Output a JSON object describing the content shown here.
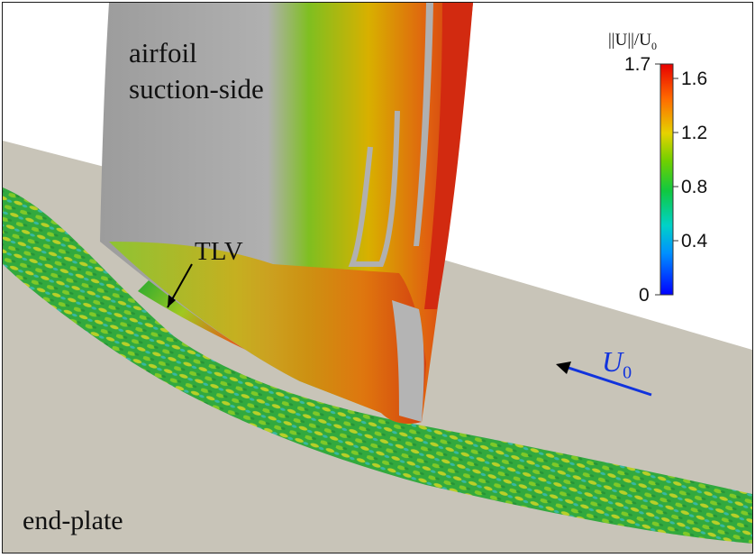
{
  "labels": {
    "airfoil_line1": "airfoil",
    "airfoil_line2": "suction-side",
    "endplate": "end-plate",
    "tlv": "TLV",
    "inflow_symbol": "U",
    "inflow_subscript": "0"
  },
  "colorbar": {
    "title_main": "||U||/U",
    "title_sub": "0",
    "max_label": "1.7",
    "min_label": "0",
    "ticks": [
      {
        "label": "1.6",
        "value": 1.6
      },
      {
        "label": "1.2",
        "value": 1.2
      },
      {
        "label": "0.8",
        "value": 0.8
      },
      {
        "label": "0.4",
        "value": 0.4
      }
    ],
    "min": 0,
    "max": 1.7,
    "colors": [
      "#0000ff",
      "#00b4ff",
      "#00d2a0",
      "#1ec81e",
      "#8cd200",
      "#ffd200",
      "#ff6400",
      "#e60000"
    ]
  },
  "colors": {
    "endplate": "#c8c4b8",
    "airfoil_grey": "#a8a8a8",
    "inflow_arrow": "#1133dd"
  }
}
